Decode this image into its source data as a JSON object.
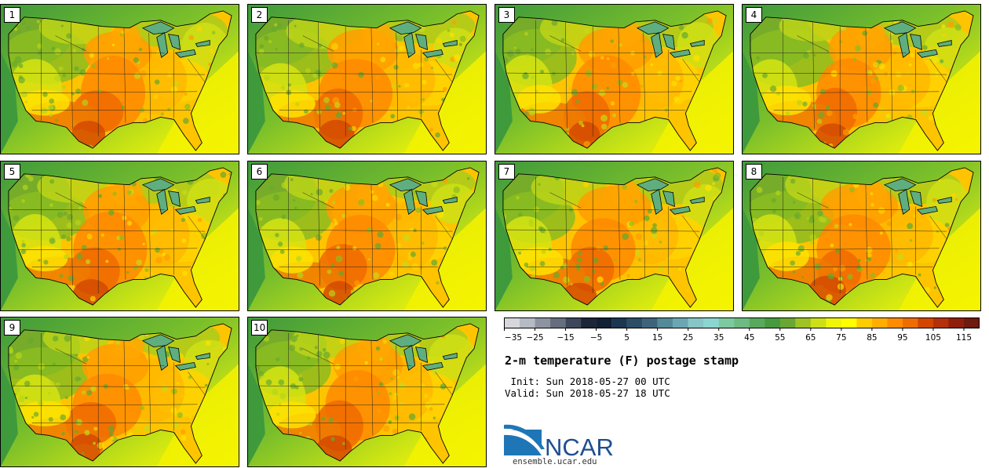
{
  "panels": [
    {
      "label": "1"
    },
    {
      "label": "2"
    },
    {
      "label": "3"
    },
    {
      "label": "4"
    },
    {
      "label": "5"
    },
    {
      "label": "6"
    },
    {
      "label": "7"
    },
    {
      "label": "8"
    },
    {
      "label": "9"
    },
    {
      "label": "10"
    }
  ],
  "colorbar": {
    "colors": [
      "#d5d7dc",
      "#b6bac3",
      "#8e949f",
      "#656d7e",
      "#3d465b",
      "#1d2538",
      "#102035",
      "#1b3650",
      "#2d4c66",
      "#3e6479",
      "#538a97",
      "#6ba7b3",
      "#86c6c7",
      "#8bd6d0",
      "#7ccaa0",
      "#6dbb83",
      "#58a95c",
      "#47993e",
      "#6aa634",
      "#9fc225",
      "#cde016",
      "#f0f50a",
      "#ffff00",
      "#ffcc00",
      "#ffae00",
      "#ff8c00",
      "#ef6d00",
      "#d24600",
      "#b3300a",
      "#8f1f0c",
      "#6e1a0f"
    ],
    "ticks": [
      "−35",
      "−25",
      "−15",
      "−5",
      "5",
      "15",
      "25",
      "35",
      "45",
      "55",
      "65",
      "75",
      "85",
      "95",
      "105",
      "115"
    ]
  },
  "title": "2-m temperature (F) postage stamp",
  "init_line": " Init: Sun 2018-05-27 00 UTC",
  "valid_line": "Valid: Sun 2018-05-27 18 UTC",
  "logo": {
    "text": "NCAR",
    "url": "ensemble.ucar.edu"
  }
}
